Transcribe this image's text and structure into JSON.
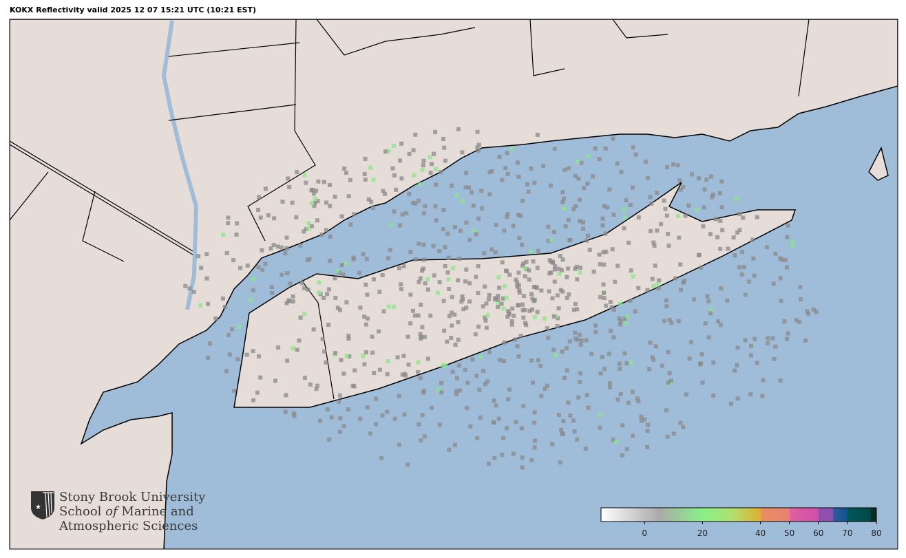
{
  "title": "KOKX Reflectivity valid 2025 12 07 15:21 UTC (10:21 EST)",
  "colors": {
    "land": "#e6dcd8",
    "water": "#9fbcd8",
    "border": "#000000"
  },
  "logo": {
    "line1": "Stony Brook University",
    "line2_a": "School ",
    "line2_b": "of",
    "line2_c": " Marine and",
    "line3": "Atmospheric Sciences"
  },
  "colorbar": {
    "range": [
      -15,
      80
    ],
    "ticks": [
      "0",
      "20",
      "40",
      "50",
      "60",
      "70",
      "80"
    ],
    "tick_values": [
      0,
      20,
      40,
      50,
      60,
      70,
      80
    ],
    "stops": [
      {
        "v": -15,
        "c": "#ffffff"
      },
      {
        "v": 5,
        "c": "#aaaaaa"
      },
      {
        "v": 20,
        "c": "#88f088"
      },
      {
        "v": 30,
        "c": "#b0e070"
      },
      {
        "v": 40,
        "c": "#e0b030"
      },
      {
        "v": 40.1,
        "c": "#e89060"
      },
      {
        "v": 50,
        "c": "#e88070"
      },
      {
        "v": 50.1,
        "c": "#e060a0"
      },
      {
        "v": 60,
        "c": "#cc50a8"
      },
      {
        "v": 60.1,
        "c": "#9050b0"
      },
      {
        "v": 65,
        "c": "#9050b0"
      },
      {
        "v": 65.1,
        "c": "#305ca0"
      },
      {
        "v": 70,
        "c": "#10508e"
      },
      {
        "v": 70.1,
        "c": "#005858"
      },
      {
        "v": 78,
        "c": "#004848"
      },
      {
        "v": 78.1,
        "c": "#003020"
      },
      {
        "v": 80,
        "c": "#003020"
      }
    ]
  }
}
